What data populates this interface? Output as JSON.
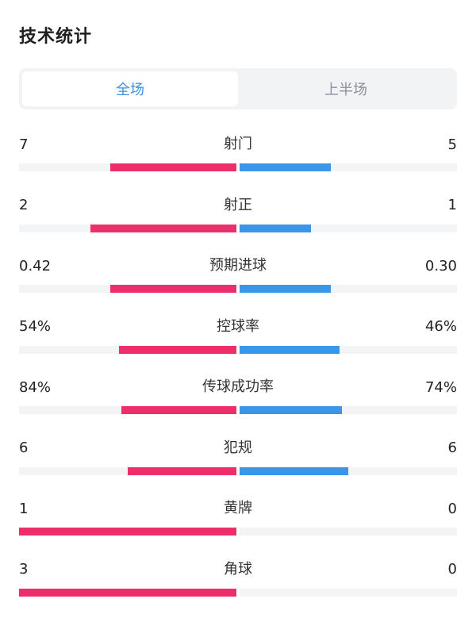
{
  "header": {
    "title": "技术统计"
  },
  "tabs": [
    {
      "label": "全场",
      "active": true
    },
    {
      "label": "上半场",
      "active": false
    }
  ],
  "colors": {
    "home": "#ec2f6b",
    "away": "#3996e8",
    "accent": "#3a8ee6",
    "track": "#f3f4f6"
  },
  "stats": [
    {
      "label": "射门",
      "home": "7",
      "away": "5",
      "home_fill": 0.58,
      "away_fill": 0.42
    },
    {
      "label": "射正",
      "home": "2",
      "away": "1",
      "home_fill": 0.67,
      "away_fill": 0.33
    },
    {
      "label": "预期进球",
      "home": "0.42",
      "away": "0.30",
      "home_fill": 0.58,
      "away_fill": 0.42
    },
    {
      "label": "控球率",
      "home": "54%",
      "away": "46%",
      "home_fill": 0.54,
      "away_fill": 0.46
    },
    {
      "label": "传球成功率",
      "home": "84%",
      "away": "74%",
      "home_fill": 0.53,
      "away_fill": 0.47
    },
    {
      "label": "犯规",
      "home": "6",
      "away": "6",
      "home_fill": 0.5,
      "away_fill": 0.5
    },
    {
      "label": "黄牌",
      "home": "1",
      "away": "0",
      "home_fill": 1.0,
      "away_fill": 0.0
    },
    {
      "label": "角球",
      "home": "3",
      "away": "0",
      "home_fill": 1.0,
      "away_fill": 0.0
    }
  ]
}
